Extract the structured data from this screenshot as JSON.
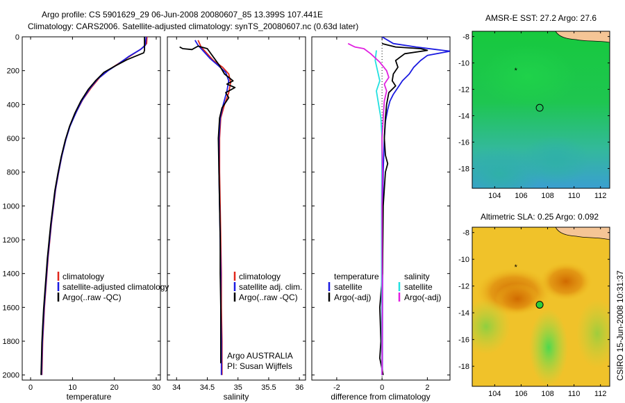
{
  "header": {
    "line1": "Argo profile: CS 5901629_29 06-Jun-2008 20080607_85 13.399S 107.441E",
    "line2": "Climatology: CARS2006. Satellite-adjusted climatology: synTS_20080607.nc (0.63d later)"
  },
  "colors": {
    "climatology": "#e0261b",
    "satellite": "#1a1ae0",
    "argo": "#000000",
    "salinity_satellite": "#22e0e0",
    "salinity_argo": "#e020e0"
  },
  "chart_data": [
    {
      "type": "line",
      "id": "temperature",
      "xlabel": "temperature",
      "xlim": [
        -2,
        31
      ],
      "ylim": [
        2030,
        0
      ],
      "xticks": [
        0,
        10,
        20,
        30
      ],
      "yticks": [
        0,
        200,
        400,
        600,
        800,
        1000,
        1200,
        1400,
        1600,
        1800,
        2000
      ],
      "legend": [
        "climatology",
        "satellite-adjusted climatology",
        "Argo(..raw -QC)"
      ],
      "series": [
        {
          "name": "climatology",
          "color": "#e0261b",
          "points": [
            [
              27.8,
              0
            ],
            [
              27.7,
              40
            ],
            [
              26.5,
              70
            ],
            [
              24,
              110
            ],
            [
              21.5,
              150
            ],
            [
              19,
              190
            ],
            [
              16.5,
              240
            ],
            [
              14.5,
              300
            ],
            [
              12.5,
              370
            ],
            [
              11,
              440
            ],
            [
              9.5,
              520
            ],
            [
              8.5,
              600
            ],
            [
              7.5,
              700
            ],
            [
              6.7,
              800
            ],
            [
              6,
              900
            ],
            [
              5.5,
              1000
            ],
            [
              5,
              1100
            ],
            [
              4.6,
              1200
            ],
            [
              4.2,
              1300
            ],
            [
              3.9,
              1400
            ],
            [
              3.6,
              1500
            ],
            [
              3.3,
              1600
            ],
            [
              3.1,
              1700
            ],
            [
              2.9,
              1800
            ],
            [
              2.8,
              1900
            ],
            [
              2.7,
              2000
            ]
          ]
        },
        {
          "name": "satellite-adjusted climatology",
          "color": "#1a1ae0",
          "points": [
            [
              27.6,
              0
            ],
            [
              27.4,
              50
            ],
            [
              26.2,
              75
            ],
            [
              23.5,
              115
            ],
            [
              21,
              160
            ],
            [
              18.5,
              200
            ],
            [
              16,
              250
            ],
            [
              14,
              310
            ],
            [
              12.2,
              380
            ],
            [
              10.8,
              450
            ],
            [
              9.4,
              530
            ],
            [
              8.4,
              610
            ],
            [
              7.4,
              710
            ],
            [
              6.6,
              810
            ],
            [
              5.9,
              910
            ],
            [
              5.4,
              1010
            ],
            [
              4.9,
              1110
            ],
            [
              4.5,
              1210
            ],
            [
              4.1,
              1310
            ],
            [
              3.8,
              1410
            ],
            [
              3.5,
              1510
            ],
            [
              3.2,
              1610
            ],
            [
              3,
              1710
            ],
            [
              2.8,
              1810
            ],
            [
              2.7,
              1910
            ],
            [
              2.6,
              2000
            ]
          ]
        },
        {
          "name": "Argo(..raw -QC)",
          "color": "#000000",
          "points": [
            [
              27.2,
              0
            ],
            [
              27.2,
              80
            ],
            [
              27,
              95
            ],
            [
              23,
              135
            ],
            [
              20,
              175
            ],
            [
              17.5,
              210
            ],
            [
              15.5,
              260
            ],
            [
              13.8,
              310
            ],
            [
              12,
              380
            ],
            [
              10.6,
              450
            ],
            [
              9.3,
              530
            ],
            [
              8.3,
              610
            ],
            [
              7.3,
              710
            ],
            [
              6.5,
              810
            ],
            [
              5.8,
              910
            ],
            [
              5.3,
              1010
            ],
            [
              4.8,
              1110
            ],
            [
              4.4,
              1210
            ],
            [
              4,
              1310
            ],
            [
              3.7,
              1410
            ],
            [
              3.4,
              1510
            ],
            [
              3.1,
              1610
            ],
            [
              2.9,
              1710
            ],
            [
              2.7,
              1810
            ],
            [
              2.6,
              1910
            ],
            [
              2.5,
              2000
            ]
          ]
        }
      ]
    },
    {
      "type": "line",
      "id": "salinity",
      "xlabel": "salinity",
      "xlim": [
        33.85,
        36.1
      ],
      "ylim": [
        2030,
        0
      ],
      "xticks": [
        34,
        34.5,
        35,
        35.5,
        36
      ],
      "legend": [
        "climatology",
        "satellite adj. clim.",
        "Argo(..raw -QC)"
      ],
      "footer": [
        "Argo AUSTRALIA",
        "PI: Susan Wijffels"
      ],
      "series": [
        {
          "name": "climatology",
          "color": "#e0261b",
          "points": [
            [
              34.35,
              20
            ],
            [
              34.4,
              60
            ],
            [
              34.5,
              100
            ],
            [
              34.6,
              140
            ],
            [
              34.75,
              180
            ],
            [
              34.85,
              220
            ],
            [
              34.88,
              270
            ],
            [
              34.85,
              330
            ],
            [
              34.78,
              400
            ],
            [
              34.72,
              480
            ],
            [
              34.7,
              600
            ],
            [
              34.7,
              800
            ],
            [
              34.71,
              1000
            ],
            [
              34.72,
              1200
            ],
            [
              34.73,
              1400
            ],
            [
              34.73,
              1600
            ],
            [
              34.74,
              1800
            ],
            [
              34.74,
              2000
            ]
          ]
        },
        {
          "name": "satellite adj. clim.",
          "color": "#1a1ae0",
          "points": [
            [
              34.3,
              20
            ],
            [
              34.35,
              50
            ],
            [
              34.45,
              90
            ],
            [
              34.55,
              130
            ],
            [
              34.68,
              170
            ],
            [
              34.8,
              210
            ],
            [
              34.85,
              260
            ],
            [
              34.82,
              320
            ],
            [
              34.76,
              400
            ],
            [
              34.71,
              480
            ],
            [
              34.69,
              600
            ],
            [
              34.69,
              800
            ],
            [
              34.7,
              1000
            ],
            [
              34.71,
              1200
            ],
            [
              34.72,
              1400
            ],
            [
              34.72,
              1600
            ],
            [
              34.73,
              1800
            ],
            [
              34.73,
              2000
            ]
          ]
        },
        {
          "name": "Argo(..raw -QC)",
          "color": "#000000",
          "points": [
            [
              34.05,
              60
            ],
            [
              34.1,
              70
            ],
            [
              34.25,
              75
            ],
            [
              34.35,
              55
            ],
            [
              34.5,
              70
            ],
            [
              34.6,
              120
            ],
            [
              34.7,
              170
            ],
            [
              34.78,
              220
            ],
            [
              34.92,
              260
            ],
            [
              34.82,
              280
            ],
            [
              34.95,
              300
            ],
            [
              34.8,
              330
            ],
            [
              34.85,
              360
            ],
            [
              34.74,
              420
            ],
            [
              34.7,
              480
            ],
            [
              34.68,
              600
            ],
            [
              34.69,
              800
            ],
            [
              34.7,
              1000
            ],
            [
              34.71,
              1200
            ],
            [
              34.71,
              1400
            ],
            [
              34.72,
              1600
            ],
            [
              34.72,
              1800
            ],
            [
              34.72,
              1930
            ]
          ]
        }
      ]
    },
    {
      "type": "line",
      "id": "difference",
      "xlabel": "difference from climatology",
      "xlim": [
        -3.1,
        3
      ],
      "ylim": [
        2030,
        0
      ],
      "xticks": [
        -2,
        0,
        2
      ],
      "legend_columns": [
        {
          "title": "temperature",
          "entries": [
            "satellite",
            "Argo(-adj)"
          ]
        },
        {
          "title": "salinity",
          "entries": [
            "satellite",
            "Argo(-adj)"
          ]
        }
      ],
      "series": [
        {
          "name": "temperature satellite",
          "color": "#1a1ae0",
          "points": [
            [
              0,
              0
            ],
            [
              0.5,
              40
            ],
            [
              1.5,
              60
            ],
            [
              2.4,
              75
            ],
            [
              3,
              85
            ],
            [
              2,
              110
            ],
            [
              1.7,
              140
            ],
            [
              1.4,
              180
            ],
            [
              1.2,
              220
            ],
            [
              0.9,
              260
            ],
            [
              0.7,
              300
            ],
            [
              0.5,
              340
            ],
            [
              0.35,
              380
            ],
            [
              0.25,
              430
            ],
            [
              0.15,
              500
            ],
            [
              0.1,
              600
            ],
            [
              0.05,
              800
            ],
            [
              0.03,
              1000
            ],
            [
              0.02,
              1500
            ],
            [
              0.01,
              2000
            ]
          ]
        },
        {
          "name": "temperature Argo(-adj)",
          "color": "#000000",
          "points": [
            [
              0,
              40
            ],
            [
              0.6,
              60
            ],
            [
              1.7,
              70
            ],
            [
              2,
              80
            ],
            [
              1,
              100
            ],
            [
              0.6,
              140
            ],
            [
              0.7,
              180
            ],
            [
              0.5,
              220
            ],
            [
              0.45,
              260
            ],
            [
              0.6,
              290
            ],
            [
              0.3,
              330
            ],
            [
              0.2,
              400
            ],
            [
              0.15,
              480
            ],
            [
              0.1,
              600
            ],
            [
              0.15,
              700
            ],
            [
              0.25,
              750
            ],
            [
              0.15,
              800
            ],
            [
              0.05,
              1000
            ],
            [
              0.02,
              1400
            ],
            [
              -0.1,
              1600
            ],
            [
              -0.05,
              1800
            ],
            [
              -0.1,
              1900
            ],
            [
              0.05,
              2000
            ]
          ]
        },
        {
          "name": "salinity satellite",
          "color": "#22e0e0",
          "points": [
            [
              -0.25,
              80
            ],
            [
              -0.3,
              140
            ],
            [
              -0.2,
              200
            ],
            [
              -0.1,
              260
            ],
            [
              -0.25,
              320
            ],
            [
              -0.15,
              400
            ],
            [
              -0.05,
              480
            ],
            [
              0,
              600
            ],
            [
              -0.02,
              1000
            ],
            [
              -0.02,
              1500
            ],
            [
              -0.01,
              2000
            ]
          ]
        },
        {
          "name": "salinity Argo(-adj)",
          "color": "#e020e0",
          "points": [
            [
              -1.5,
              40
            ],
            [
              -1.2,
              60
            ],
            [
              -0.8,
              70
            ],
            [
              -0.5,
              100
            ],
            [
              -0.1,
              150
            ],
            [
              0.2,
              200
            ],
            [
              0.3,
              240
            ],
            [
              0.1,
              280
            ],
            [
              0.2,
              320
            ],
            [
              0.1,
              380
            ],
            [
              0.05,
              480
            ],
            [
              0,
              600
            ],
            [
              0.02,
              800
            ],
            [
              0,
              1000
            ],
            [
              0.01,
              1500
            ],
            [
              0,
              2000
            ]
          ]
        }
      ]
    },
    {
      "type": "heatmap",
      "id": "sst-map",
      "title": "AMSR-E SST: 27.2 Argo: 27.6",
      "xlim": [
        102.3,
        112.7
      ],
      "ylim": [
        -19.5,
        -7.6
      ],
      "xticks": [
        104,
        106,
        108,
        110,
        112
      ],
      "yticks": [
        -8,
        -10,
        -12,
        -14,
        -16,
        -18
      ],
      "markers": [
        {
          "symbol": "*",
          "lon": 105.6,
          "lat": -10.5
        },
        {
          "symbol": "circle",
          "lon": 107.4,
          "lat": -13.4
        }
      ]
    },
    {
      "type": "heatmap",
      "id": "sla-map",
      "title": "Altimetric SLA: 0.25 Argo: 0.092",
      "xlim": [
        102.3,
        112.7
      ],
      "ylim": [
        -19.5,
        -7.6
      ],
      "xticks": [
        104,
        106,
        108,
        110,
        112
      ],
      "yticks": [
        -8,
        -10,
        -12,
        -14,
        -16,
        -18
      ],
      "markers": [
        {
          "symbol": "*",
          "lon": 105.6,
          "lat": -10.5
        },
        {
          "symbol": "circle-filled",
          "lon": 107.4,
          "lat": -13.4
        }
      ]
    }
  ],
  "side_label": "CSIRO 15-Jun-2008 10:31:37"
}
